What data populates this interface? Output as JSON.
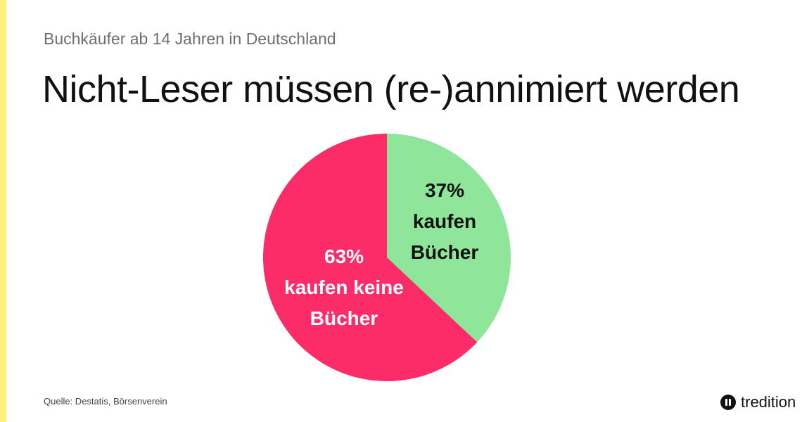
{
  "header": {
    "subtitle": "Buchkäufer ab 14 Jahren in Deutschland",
    "title": "Nicht-Leser müssen (re-)annimiert werden"
  },
  "chart_data": {
    "type": "pie",
    "slices": [
      {
        "value": 37,
        "value_label": "37%",
        "text_lines": [
          "kaufen",
          "Bücher"
        ],
        "color": "#8fe69a",
        "text_color": "#111111"
      },
      {
        "value": 63,
        "value_label": "63%",
        "text_lines": [
          "kaufen keine",
          "Bücher"
        ],
        "color": "#fb2c67",
        "text_color": "#ffffff"
      }
    ]
  },
  "footer": {
    "source": "Quelle: Destatis, Börsenverein",
    "brand_icon": "tredition-logo-icon",
    "brand_name": "tredition"
  },
  "colors": {
    "accent": "#fff07a"
  }
}
